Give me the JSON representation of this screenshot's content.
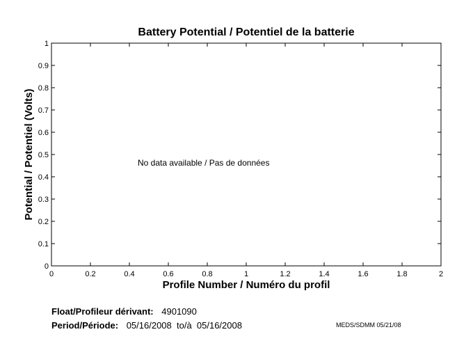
{
  "chart_data": {
    "type": "line",
    "title": "Battery Potential / Potentiel de la batterie",
    "xlabel": "Profile Number / Numéro du profil",
    "ylabel": "Potential / Potentiel (Volts)",
    "xlim": [
      0,
      2
    ],
    "ylim": [
      0,
      1
    ],
    "x_ticks": [
      "0",
      "0.2",
      "0.4",
      "0.6",
      "0.8",
      "1",
      "1.2",
      "1.4",
      "1.6",
      "1.8",
      "2"
    ],
    "y_ticks": [
      "0",
      "0.1",
      "0.2",
      "0.3",
      "0.4",
      "0.5",
      "0.6",
      "0.7",
      "0.8",
      "0.9",
      "1"
    ],
    "grid": false,
    "series": [],
    "annotation": "No data available / Pas de données"
  },
  "footer": {
    "float_label": "Float/Profileur dérivant:",
    "float_value": "4901090",
    "period_label": "Period/Période:",
    "period_value": "05/16/2008  to/à  05/16/2008",
    "credit": "MEDS/SDMM  05/21/08"
  }
}
